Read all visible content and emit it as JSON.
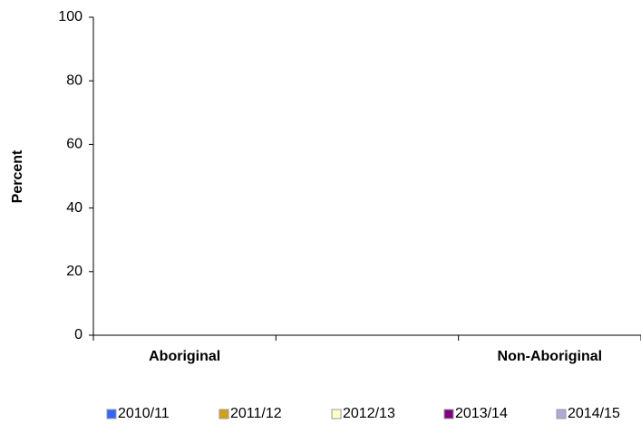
{
  "chart_data": {
    "type": "bar",
    "y_label": "Percent",
    "categories": [
      "Aboriginal",
      null,
      "Non-Aboriginal"
    ],
    "series": [
      {
        "name": "2010/11",
        "color": "#3366ff",
        "values": [
          null,
          null,
          null
        ]
      },
      {
        "name": "2011/12",
        "color": "#d4a017",
        "values": [
          null,
          null,
          null
        ]
      },
      {
        "name": "2012/13",
        "color": "#ffffcc",
        "values": [
          null,
          null,
          null
        ]
      },
      {
        "name": "2013/14",
        "color": "#800080",
        "values": [
          null,
          null,
          null
        ]
      },
      {
        "name": "2014/15",
        "color": "#b4a7d6",
        "values": [
          null,
          null,
          null
        ]
      }
    ],
    "ylim": [
      0,
      100
    ],
    "yticks": [
      0,
      20,
      40,
      60,
      80,
      100
    ],
    "legend": "bottom"
  }
}
